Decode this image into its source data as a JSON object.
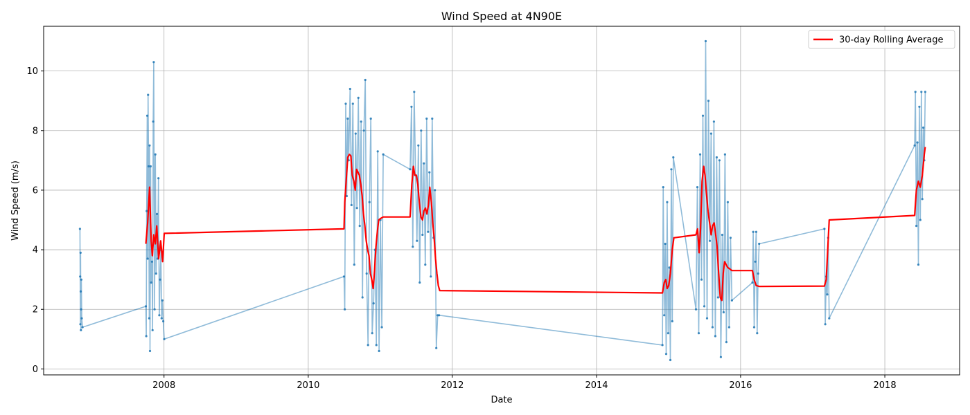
{
  "chart_data": {
    "type": "line",
    "title": "Wind Speed at 4N90E",
    "xlabel": "Date",
    "ylabel": "Wind Speed (m/s)",
    "xlim": [
      "2006-05-01",
      "2019-01-15"
    ],
    "ylim": [
      -0.2,
      11.5
    ],
    "x_ticks": [
      "2008",
      "2010",
      "2012",
      "2014",
      "2016",
      "2018"
    ],
    "y_ticks": [
      0,
      2,
      4,
      6,
      8,
      10
    ],
    "grid": true,
    "legend_position": "top-right",
    "legend": [
      "30-day Rolling Average"
    ],
    "colors": {
      "raw": "#1f77b4",
      "rolling": "#ff0000",
      "grid": "#b0b0b0"
    },
    "series": [
      {
        "kind": "raw",
        "x": [
          "2006-11-01",
          "2006-11-02",
          "2006-11-03",
          "2006-11-04",
          "2006-11-05",
          "2006-11-06",
          "2006-11-07",
          "2006-11-08",
          "2006-11-10",
          "2006-11-14",
          "2007-10-01",
          "2007-10-03",
          "2007-10-05",
          "2007-10-08",
          "2007-10-10",
          "2007-10-12",
          "2007-10-15",
          "2007-10-18",
          "2007-10-20",
          "2007-10-22",
          "2007-10-25",
          "2007-10-28",
          "2007-11-01",
          "2007-11-04",
          "2007-11-07",
          "2007-11-10",
          "2007-11-14",
          "2007-11-18",
          "2007-11-22",
          "2007-11-26",
          "2007-11-30",
          "2007-12-04",
          "2007-12-08",
          "2007-12-12",
          "2007-12-16",
          "2007-12-20",
          "2007-12-24",
          "2007-12-28",
          "2008-01-02",
          "2010-07-01",
          "2010-07-05",
          "2010-07-10",
          "2010-07-15",
          "2010-07-20",
          "2010-07-25",
          "2010-08-01",
          "2010-08-08",
          "2010-08-15",
          "2010-08-22",
          "2010-08-29",
          "2010-09-05",
          "2010-09-12",
          "2010-09-19",
          "2010-09-26",
          "2010-10-03",
          "2010-10-10",
          "2010-10-17",
          "2010-10-24",
          "2010-10-31",
          "2010-11-07",
          "2010-11-14",
          "2010-11-21",
          "2010-11-28",
          "2010-12-05",
          "2010-12-12",
          "2010-12-19",
          "2010-12-26",
          "2011-01-02",
          "2011-01-09",
          "2011-01-16",
          "2011-06-01",
          "2011-06-08",
          "2011-06-15",
          "2011-06-22",
          "2011-06-29",
          "2011-07-06",
          "2011-07-13",
          "2011-07-20",
          "2011-07-27",
          "2011-08-03",
          "2011-08-10",
          "2011-08-17",
          "2011-08-24",
          "2011-08-31",
          "2011-09-07",
          "2011-09-14",
          "2011-09-21",
          "2011-09-28",
          "2011-10-05",
          "2011-10-12",
          "2011-10-19",
          "2011-10-26",
          "2014-12-01",
          "2014-12-05",
          "2014-12-10",
          "2014-12-15",
          "2014-12-20",
          "2014-12-25",
          "2014-12-30",
          "2015-01-05",
          "2015-01-10",
          "2015-01-15",
          "2015-01-20",
          "2015-01-25",
          "2015-05-20",
          "2015-05-27",
          "2015-06-03",
          "2015-06-10",
          "2015-06-17",
          "2015-06-24",
          "2015-07-01",
          "2015-07-08",
          "2015-07-15",
          "2015-07-22",
          "2015-07-29",
          "2015-08-05",
          "2015-08-12",
          "2015-08-19",
          "2015-08-26",
          "2015-09-02",
          "2015-09-09",
          "2015-09-16",
          "2015-09-23",
          "2015-09-30",
          "2015-10-07",
          "2015-10-14",
          "2015-10-21",
          "2015-10-28",
          "2015-11-04",
          "2015-11-11",
          "2015-11-18",
          "2016-03-01",
          "2016-03-05",
          "2016-03-10",
          "2016-03-15",
          "2016-03-20",
          "2016-03-25",
          "2016-03-30",
          "2016-04-04",
          "2017-03-01",
          "2017-03-05",
          "2017-03-10",
          "2017-03-15",
          "2017-03-20",
          "2017-03-25",
          "2018-06-01",
          "2018-06-05",
          "2018-06-10",
          "2018-06-15",
          "2018-06-20",
          "2018-06-25",
          "2018-06-30",
          "2018-07-05",
          "2018-07-10",
          "2018-07-15",
          "2018-07-20",
          "2018-07-25"
        ],
        "y": [
          4.7,
          3.1,
          1.5,
          3.9,
          2.6,
          1.3,
          2.0,
          3.0,
          1.7,
          1.4,
          2.1,
          1.1,
          5.3,
          8.5,
          3.7,
          9.2,
          6.8,
          1.7,
          7.5,
          0.6,
          6.8,
          2.9,
          3.6,
          1.3,
          8.3,
          10.3,
          2.0,
          7.2,
          3.2,
          5.2,
          3.7,
          6.4,
          1.8,
          3.0,
          4.0,
          1.7,
          2.3,
          1.6,
          1.0,
          3.1,
          2.0,
          8.9,
          5.8,
          8.4,
          7.0,
          9.4,
          5.5,
          8.9,
          3.5,
          7.9,
          5.4,
          9.1,
          4.8,
          8.3,
          2.4,
          8.0,
          9.7,
          3.2,
          0.8,
          5.6,
          8.4,
          1.2,
          2.2,
          4.0,
          0.8,
          7.3,
          0.6,
          5.0,
          1.4,
          7.2,
          6.7,
          8.8,
          4.1,
          9.3,
          6.5,
          4.3,
          7.5,
          2.9,
          8.0,
          4.5,
          6.9,
          3.5,
          8.4,
          4.6,
          6.6,
          3.1,
          8.4,
          4.4,
          6.0,
          0.7,
          1.8,
          1.8,
          0.8,
          6.1,
          1.8,
          4.2,
          0.5,
          5.6,
          1.2,
          3.4,
          0.3,
          6.7,
          1.6,
          7.1,
          2.0,
          6.1,
          1.2,
          7.2,
          3.0,
          8.5,
          2.1,
          11.0,
          1.7,
          9.0,
          4.3,
          7.9,
          1.4,
          8.3,
          1.1,
          7.1,
          2.4,
          7.0,
          0.4,
          4.5,
          1.9,
          7.2,
          0.9,
          5.6,
          1.4,
          4.4,
          2.3,
          2.9,
          4.6,
          1.4,
          3.6,
          4.6,
          1.2,
          3.2,
          4.2,
          4.7,
          1.5,
          3.1,
          2.5,
          4.4,
          1.7,
          7.5,
          9.3,
          4.8,
          7.6,
          3.5,
          8.8,
          5.0,
          9.3,
          5.7,
          8.1,
          7.0,
          9.3
        ]
      },
      {
        "kind": "rolling",
        "name": "30-day Rolling Average",
        "x": [
          "2007-10-01",
          "2007-10-10",
          "2007-10-20",
          "2007-10-28",
          "2007-11-03",
          "2007-11-10",
          "2007-11-18",
          "2007-11-25",
          "2007-12-05",
          "2007-12-15",
          "2007-12-25",
          "2008-01-02",
          "2010-07-01",
          "2010-07-05",
          "2010-07-12",
          "2010-07-20",
          "2010-07-28",
          "2010-08-05",
          "2010-08-12",
          "2010-08-20",
          "2010-08-27",
          "2010-09-03",
          "2010-09-10",
          "2010-09-17",
          "2010-09-24",
          "2010-10-01",
          "2010-10-08",
          "2010-10-15",
          "2010-10-22",
          "2010-10-29",
          "2010-11-05",
          "2010-11-12",
          "2010-11-19",
          "2010-11-26",
          "2010-12-03",
          "2010-12-10",
          "2010-12-17",
          "2010-12-24",
          "2011-01-03",
          "2011-01-16",
          "2011-06-01",
          "2011-06-10",
          "2011-06-18",
          "2011-06-25",
          "2011-07-03",
          "2011-07-10",
          "2011-07-18",
          "2011-07-26",
          "2011-08-03",
          "2011-08-10",
          "2011-08-18",
          "2011-08-25",
          "2011-09-02",
          "2011-09-09",
          "2011-09-17",
          "2011-09-24",
          "2011-10-01",
          "2011-10-08",
          "2011-10-15",
          "2011-10-22",
          "2011-10-29",
          "2014-12-01",
          "2014-12-10",
          "2014-12-18",
          "2014-12-25",
          "2015-01-02",
          "2015-01-10",
          "2015-01-20",
          "2015-01-28",
          "2015-05-20",
          "2015-05-28",
          "2015-06-05",
          "2015-06-12",
          "2015-06-20",
          "2015-06-28",
          "2015-07-05",
          "2015-07-12",
          "2015-07-20",
          "2015-07-28",
          "2015-08-05",
          "2015-08-12",
          "2015-08-20",
          "2015-08-28",
          "2015-09-04",
          "2015-09-12",
          "2015-09-20",
          "2015-09-28",
          "2015-10-05",
          "2015-10-12",
          "2015-10-20",
          "2015-10-28",
          "2015-11-05",
          "2015-11-18",
          "2016-03-01",
          "2016-03-10",
          "2016-03-20",
          "2016-04-04",
          "2017-03-01",
          "2017-03-10",
          "2017-03-25",
          "2018-06-01",
          "2018-06-10",
          "2018-06-20",
          "2018-06-30",
          "2018-07-10",
          "2018-07-20",
          "2018-07-25"
        ],
        "y": [
          4.2,
          4.9,
          6.1,
          4.3,
          3.8,
          4.5,
          4.2,
          4.8,
          3.7,
          4.3,
          3.6,
          4.55,
          4.7,
          5.6,
          6.3,
          7.1,
          7.2,
          7.15,
          6.5,
          6.3,
          6.0,
          6.7,
          6.6,
          6.5,
          6.2,
          5.8,
          5.2,
          4.8,
          4.3,
          4.0,
          3.8,
          3.2,
          3.0,
          2.7,
          3.3,
          4.1,
          4.6,
          5.0,
          5.05,
          5.1,
          5.1,
          6.2,
          6.8,
          6.5,
          6.5,
          6.2,
          5.6,
          5.1,
          5.0,
          5.3,
          5.4,
          5.2,
          5.5,
          6.1,
          5.6,
          4.9,
          4.4,
          3.7,
          3.2,
          2.8,
          2.63,
          2.55,
          2.9,
          3.0,
          2.7,
          2.8,
          3.2,
          4.0,
          4.4,
          4.5,
          4.7,
          3.9,
          4.7,
          6.3,
          6.8,
          6.5,
          5.9,
          5.3,
          4.9,
          4.5,
          4.8,
          4.9,
          4.5,
          4.1,
          3.2,
          2.4,
          2.3,
          3.2,
          3.6,
          3.5,
          3.4,
          3.37,
          3.3,
          3.3,
          3.0,
          2.8,
          2.77,
          2.78,
          3.0,
          5.0,
          5.15,
          6.0,
          6.3,
          6.1,
          6.5,
          7.2,
          7.45
        ]
      }
    ]
  }
}
